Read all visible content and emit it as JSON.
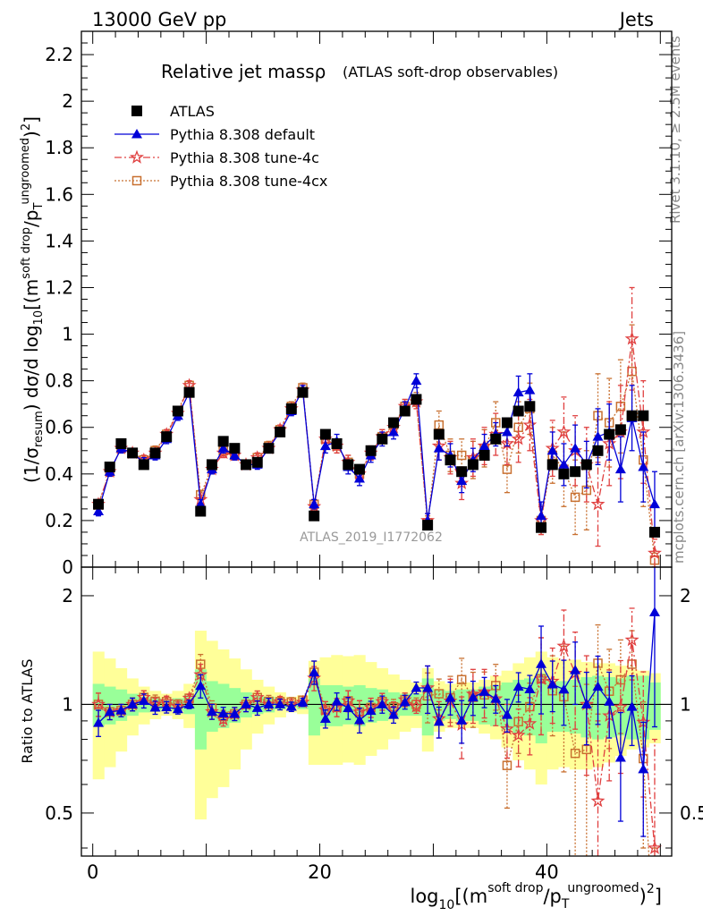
{
  "header": {
    "left": "13000 GeV pp",
    "right": "Jets"
  },
  "side": {
    "upper": "Rivet 3.1.10, ≥ 2.5M events",
    "lower": "mcplots.cern.ch [arXiv:1306.3436]"
  },
  "chart_data": {
    "type": "scatter",
    "title": "Relative jet massρ",
    "subtitle": "(ATLAS soft-drop observables)",
    "watermark": "ATLAS_2019_I1772062",
    "ylabel_main": "(1/σresum) dσ/d log10[(m^soft drop/pT^ungroomed)^2]",
    "ylabel_ratio": "Ratio to ATLAS",
    "xlabel": "log10[(m^soft drop/pT^ungroomed)^2]",
    "xlim": [
      -1,
      51
    ],
    "ylim": [
      0,
      2.3
    ],
    "ratio_ylim": [
      0.38,
      2.4
    ],
    "ratio_scale": "log",
    "legend_position": "top-left",
    "x": [
      0.5,
      1.5,
      2.5,
      3.5,
      4.5,
      5.5,
      6.5,
      7.5,
      8.5,
      9.5,
      10.5,
      11.5,
      12.5,
      13.5,
      14.5,
      15.5,
      16.5,
      17.5,
      18.5,
      19.5,
      20.5,
      21.5,
      22.5,
      23.5,
      24.5,
      25.5,
      26.5,
      27.5,
      28.5,
      29.5,
      30.5,
      31.5,
      32.5,
      33.5,
      34.5,
      35.5,
      36.5,
      37.5,
      38.5,
      39.5,
      40.5,
      41.5,
      42.5,
      43.5,
      44.5,
      45.5,
      46.5,
      47.5,
      48.5,
      49.5
    ],
    "series": [
      {
        "name": "ATLAS",
        "color": "#000000",
        "marker": "square",
        "values": [
          0.27,
          0.43,
          0.53,
          0.49,
          0.44,
          0.49,
          0.56,
          0.67,
          0.75,
          0.24,
          0.44,
          0.54,
          0.51,
          0.44,
          0.45,
          0.51,
          0.58,
          0.68,
          0.75,
          0.22,
          0.57,
          0.53,
          0.44,
          0.42,
          0.5,
          0.55,
          0.62,
          0.67,
          0.72,
          0.18,
          0.57,
          0.46,
          0.41,
          0.44,
          0.48,
          0.55,
          0.62,
          0.67,
          0.69,
          0.17,
          0.44,
          0.4,
          0.41,
          0.44,
          0.5,
          0.57,
          0.59,
          0.65,
          0.65,
          0.15
        ]
      },
      {
        "name": "Pythia 8.308 default",
        "color": "#0000d8",
        "marker": "triangle",
        "line": "solid",
        "values": [
          0.24,
          0.41,
          0.51,
          0.49,
          0.45,
          0.48,
          0.55,
          0.65,
          0.75,
          0.27,
          0.42,
          0.51,
          0.48,
          0.44,
          0.44,
          0.51,
          0.58,
          0.67,
          0.76,
          0.27,
          0.52,
          0.54,
          0.43,
          0.38,
          0.48,
          0.55,
          0.58,
          0.68,
          0.8,
          0.2,
          0.51,
          0.48,
          0.37,
          0.46,
          0.52,
          0.57,
          0.58,
          0.75,
          0.76,
          0.22,
          0.5,
          0.44,
          0.51,
          0.44,
          0.56,
          0.58,
          0.42,
          0.64,
          0.43,
          0.27
        ]
      },
      {
        "name": "Pythia 8.308 tune-4c",
        "color": "#e04040",
        "marker": "star",
        "line": "dashdot",
        "values": [
          0.27,
          0.41,
          0.51,
          0.49,
          0.46,
          0.49,
          0.57,
          0.66,
          0.78,
          0.29,
          0.42,
          0.49,
          0.48,
          0.44,
          0.47,
          0.51,
          0.59,
          0.68,
          0.76,
          0.26,
          0.55,
          0.52,
          0.45,
          0.4,
          0.49,
          0.56,
          0.6,
          0.69,
          0.71,
          0.2,
          0.52,
          0.47,
          0.36,
          0.47,
          0.52,
          0.57,
          0.53,
          0.55,
          0.61,
          0.2,
          0.51,
          0.58,
          0.5,
          0.44,
          0.27,
          0.53,
          0.58,
          0.98,
          0.58,
          0.06
        ]
      },
      {
        "name": "Pythia 8.308 tune-4cx",
        "color": "#c87030",
        "marker": "open-square",
        "line": "dotted",
        "values": [
          0.27,
          0.41,
          0.51,
          0.49,
          0.46,
          0.5,
          0.57,
          0.67,
          0.78,
          0.31,
          0.43,
          0.5,
          0.48,
          0.44,
          0.47,
          0.52,
          0.59,
          0.69,
          0.77,
          0.27,
          0.55,
          0.52,
          0.45,
          0.4,
          0.49,
          0.56,
          0.61,
          0.69,
          0.72,
          0.19,
          0.61,
          0.48,
          0.48,
          0.46,
          0.51,
          0.62,
          0.42,
          0.6,
          0.68,
          0.2,
          0.48,
          0.42,
          0.3,
          0.33,
          0.65,
          0.62,
          0.69,
          0.84,
          0.46,
          0.03
        ]
      }
    ],
    "errors": {
      "Pythia 8.308 default": [
        0.02,
        0.02,
        0.02,
        0.02,
        0.02,
        0.02,
        0.02,
        0.02,
        0.02,
        0.02,
        0.02,
        0.02,
        0.02,
        0.02,
        0.02,
        0.02,
        0.02,
        0.02,
        0.02,
        0.02,
        0.03,
        0.03,
        0.03,
        0.03,
        0.03,
        0.03,
        0.03,
        0.03,
        0.03,
        0.03,
        0.05,
        0.05,
        0.05,
        0.05,
        0.05,
        0.05,
        0.06,
        0.07,
        0.07,
        0.06,
        0.08,
        0.09,
        0.1,
        0.1,
        0.12,
        0.12,
        0.14,
        0.14,
        0.15,
        0.14
      ],
      "Pythia 8.308 tune-4c": [
        0.02,
        0.02,
        0.02,
        0.02,
        0.02,
        0.02,
        0.02,
        0.02,
        0.02,
        0.02,
        0.02,
        0.02,
        0.02,
        0.02,
        0.02,
        0.02,
        0.02,
        0.02,
        0.02,
        0.02,
        0.03,
        0.03,
        0.03,
        0.03,
        0.03,
        0.03,
        0.03,
        0.03,
        0.03,
        0.03,
        0.06,
        0.07,
        0.07,
        0.08,
        0.08,
        0.09,
        0.09,
        0.1,
        0.11,
        0.06,
        0.12,
        0.15,
        0.15,
        0.16,
        0.18,
        0.18,
        0.2,
        0.22,
        0.22,
        0.06
      ],
      "Pythia 8.308 tune-4cx": [
        0.02,
        0.02,
        0.02,
        0.02,
        0.02,
        0.02,
        0.02,
        0.02,
        0.02,
        0.02,
        0.02,
        0.02,
        0.02,
        0.02,
        0.02,
        0.02,
        0.02,
        0.02,
        0.02,
        0.02,
        0.03,
        0.03,
        0.03,
        0.03,
        0.03,
        0.03,
        0.03,
        0.03,
        0.03,
        0.03,
        0.06,
        0.07,
        0.07,
        0.08,
        0.08,
        0.09,
        0.1,
        0.11,
        0.11,
        0.06,
        0.12,
        0.16,
        0.16,
        0.17,
        0.18,
        0.19,
        0.2,
        0.2,
        0.2,
        0.03
      ]
    },
    "ratio_bands": {
      "inner_lower": [
        0.87,
        0.88,
        0.9,
        0.93,
        0.95,
        0.96,
        0.97,
        0.96,
        0.94,
        0.75,
        0.84,
        0.86,
        0.89,
        0.92,
        0.94,
        0.95,
        0.97,
        0.98,
        0.97,
        0.82,
        0.87,
        0.87,
        0.88,
        0.87,
        0.89,
        0.9,
        0.92,
        0.93,
        0.93,
        0.82,
        0.9,
        0.91,
        0.9,
        0.9,
        0.88,
        0.87,
        0.85,
        0.83,
        0.82,
        0.78,
        0.84,
        0.84,
        0.83,
        0.81,
        0.8,
        0.81,
        0.82,
        0.8,
        0.8,
        0.85
      ],
      "inner_upper": [
        1.14,
        1.12,
        1.1,
        1.07,
        1.05,
        1.04,
        1.03,
        1.04,
        1.06,
        1.25,
        1.16,
        1.14,
        1.11,
        1.08,
        1.06,
        1.05,
        1.03,
        1.02,
        1.03,
        1.18,
        1.13,
        1.13,
        1.12,
        1.13,
        1.11,
        1.1,
        1.08,
        1.07,
        1.07,
        1.18,
        1.1,
        1.09,
        1.1,
        1.1,
        1.12,
        1.13,
        1.15,
        1.17,
        1.18,
        1.22,
        1.16,
        1.16,
        1.17,
        1.19,
        1.2,
        1.19,
        1.18,
        1.2,
        1.2,
        1.15
      ],
      "outer_lower": [
        0.62,
        0.67,
        0.74,
        0.82,
        0.88,
        0.91,
        0.93,
        0.91,
        0.86,
        0.48,
        0.55,
        0.59,
        0.66,
        0.75,
        0.83,
        0.88,
        0.92,
        0.95,
        0.94,
        0.68,
        0.68,
        0.68,
        0.69,
        0.68,
        0.72,
        0.75,
        0.8,
        0.84,
        0.86,
        0.74,
        0.84,
        0.86,
        0.86,
        0.86,
        0.83,
        0.8,
        0.76,
        0.7,
        0.66,
        0.6,
        0.66,
        0.67,
        0.66,
        0.66,
        0.67,
        0.69,
        0.72,
        0.75,
        0.76,
        0.78
      ],
      "outer_upper": [
        1.4,
        1.34,
        1.26,
        1.18,
        1.12,
        1.09,
        1.07,
        1.09,
        1.14,
        1.6,
        1.5,
        1.42,
        1.34,
        1.25,
        1.17,
        1.12,
        1.08,
        1.05,
        1.06,
        1.32,
        1.35,
        1.37,
        1.36,
        1.37,
        1.31,
        1.26,
        1.21,
        1.17,
        1.15,
        1.26,
        1.16,
        1.14,
        1.15,
        1.15,
        1.17,
        1.2,
        1.24,
        1.3,
        1.35,
        1.4,
        1.35,
        1.33,
        1.33,
        1.31,
        1.3,
        1.3,
        1.28,
        1.25,
        1.24,
        1.22
      ]
    }
  }
}
